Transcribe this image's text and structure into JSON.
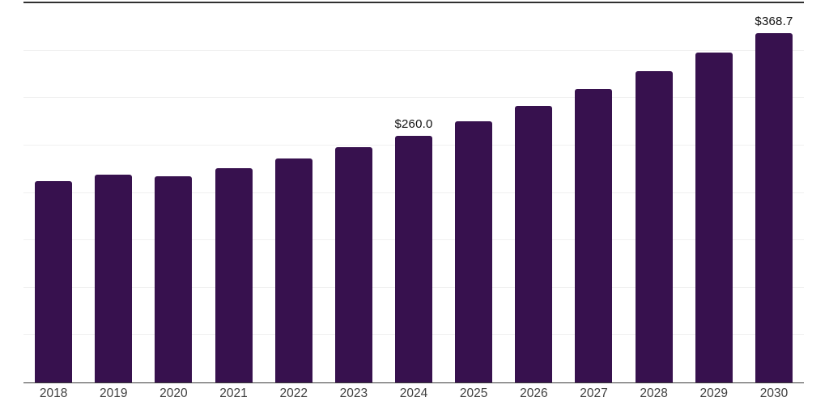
{
  "chart_data": {
    "type": "bar",
    "title": "",
    "xlabel": "",
    "ylabel": "",
    "categories": [
      "2018",
      "2019",
      "2020",
      "2021",
      "2022",
      "2023",
      "2024",
      "2025",
      "2026",
      "2027",
      "2028",
      "2029",
      "2030"
    ],
    "values": [
      212.0,
      219.5,
      217.5,
      226.0,
      236.5,
      248.0,
      260.0,
      275.6,
      292.1,
      309.6,
      328.2,
      347.8,
      368.7
    ],
    "data_labels": {
      "2024": "$260.0",
      "2030": "$368.7"
    },
    "ylim": [
      0,
      400
    ],
    "grid_step": 50,
    "grid": true,
    "legend": false,
    "bar_color": "#37114e",
    "gridline_color": "#f0f0f0",
    "axis_line_color": "#3a3a3a",
    "top_border_color": "#303030",
    "tick_label_color": "#3f3f3f",
    "data_label_color": "#111111"
  }
}
